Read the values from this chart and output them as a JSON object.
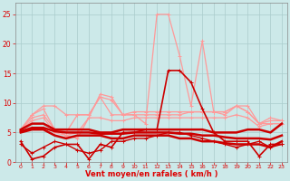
{
  "x": [
    0,
    1,
    2,
    3,
    4,
    5,
    6,
    7,
    8,
    9,
    10,
    11,
    12,
    13,
    14,
    15,
    16,
    17,
    18,
    19,
    20,
    21,
    22,
    23
  ],
  "light_pink_peak": [
    5.5,
    8.0,
    9.0,
    5.5,
    4.5,
    4.0,
    7.5,
    11.5,
    11.0,
    8.0,
    8.0,
    6.5,
    25.0,
    25.0,
    18.0,
    9.5,
    20.5,
    8.5,
    8.5,
    9.5,
    8.5,
    6.5,
    7.5,
    7.0
  ],
  "light_pink_mid1": [
    5.5,
    8.0,
    9.5,
    9.5,
    8.0,
    8.0,
    8.0,
    11.0,
    8.0,
    8.0,
    8.5,
    8.5,
    8.5,
    8.5,
    8.5,
    8.5,
    8.5,
    8.5,
    8.5,
    9.5,
    8.5,
    6.5,
    7.0,
    7.0
  ],
  "light_pink_mid2": [
    5.5,
    7.5,
    8.0,
    5.5,
    5.0,
    8.0,
    8.0,
    11.0,
    10.5,
    8.0,
    8.0,
    8.0,
    8.0,
    8.0,
    8.0,
    8.5,
    8.5,
    8.5,
    8.0,
    9.5,
    9.5,
    6.5,
    6.5,
    6.5
  ],
  "light_pink_low": [
    5.5,
    7.0,
    7.5,
    5.0,
    4.5,
    5.0,
    7.5,
    7.5,
    7.0,
    7.0,
    7.5,
    7.5,
    7.5,
    7.5,
    7.5,
    7.5,
    7.5,
    7.5,
    7.5,
    8.0,
    7.5,
    6.0,
    6.5,
    6.5
  ],
  "dark_wiggly": [
    3.5,
    0.5,
    1.0,
    2.5,
    3.0,
    3.0,
    0.5,
    3.0,
    2.5,
    5.0,
    5.0,
    5.5,
    5.5,
    15.5,
    15.5,
    13.5,
    9.0,
    5.0,
    3.5,
    3.5,
    3.5,
    1.0,
    3.0,
    3.0
  ],
  "dark_flat1": [
    5.5,
    6.5,
    6.5,
    5.5,
    5.5,
    5.5,
    5.5,
    5.0,
    5.0,
    5.5,
    5.5,
    5.5,
    5.5,
    5.5,
    5.5,
    5.5,
    5.5,
    5.0,
    5.0,
    5.0,
    5.5,
    5.5,
    5.0,
    6.5
  ],
  "dark_flat2": [
    5.2,
    5.8,
    5.8,
    5.2,
    5.0,
    5.0,
    5.0,
    4.8,
    4.8,
    4.8,
    5.0,
    5.0,
    5.0,
    5.0,
    4.8,
    4.8,
    4.5,
    4.5,
    4.2,
    4.0,
    4.0,
    4.0,
    3.8,
    4.5
  ],
  "dark_flat3": [
    5.0,
    5.5,
    5.5,
    4.5,
    4.0,
    4.5,
    4.5,
    4.5,
    4.0,
    4.0,
    4.5,
    4.5,
    4.5,
    4.5,
    4.0,
    4.0,
    3.5,
    3.5,
    3.2,
    3.0,
    3.0,
    3.0,
    2.5,
    3.5
  ],
  "dark_low_wiggly": [
    3.0,
    1.5,
    2.5,
    3.5,
    3.0,
    2.0,
    1.5,
    2.0,
    3.5,
    3.5,
    4.0,
    4.0,
    4.5,
    5.0,
    5.0,
    4.5,
    4.0,
    3.5,
    3.0,
    2.5,
    3.0,
    3.5,
    2.5,
    3.0
  ],
  "xlabel": "Vent moyen/en rafales ( km/h )",
  "xlim": [
    -0.5,
    23.5
  ],
  "ylim": [
    0,
    27
  ],
  "yticks": [
    0,
    5,
    10,
    15,
    20,
    25
  ],
  "xticks": [
    0,
    1,
    2,
    3,
    4,
    5,
    6,
    7,
    8,
    9,
    10,
    11,
    12,
    13,
    14,
    15,
    16,
    17,
    18,
    19,
    20,
    21,
    22,
    23
  ],
  "bg_color": "#cce9e9",
  "grid_color": "#aacccc",
  "text_color": "#dd0000",
  "light_pink": "#ff9999",
  "dark_red": "#cc0000"
}
